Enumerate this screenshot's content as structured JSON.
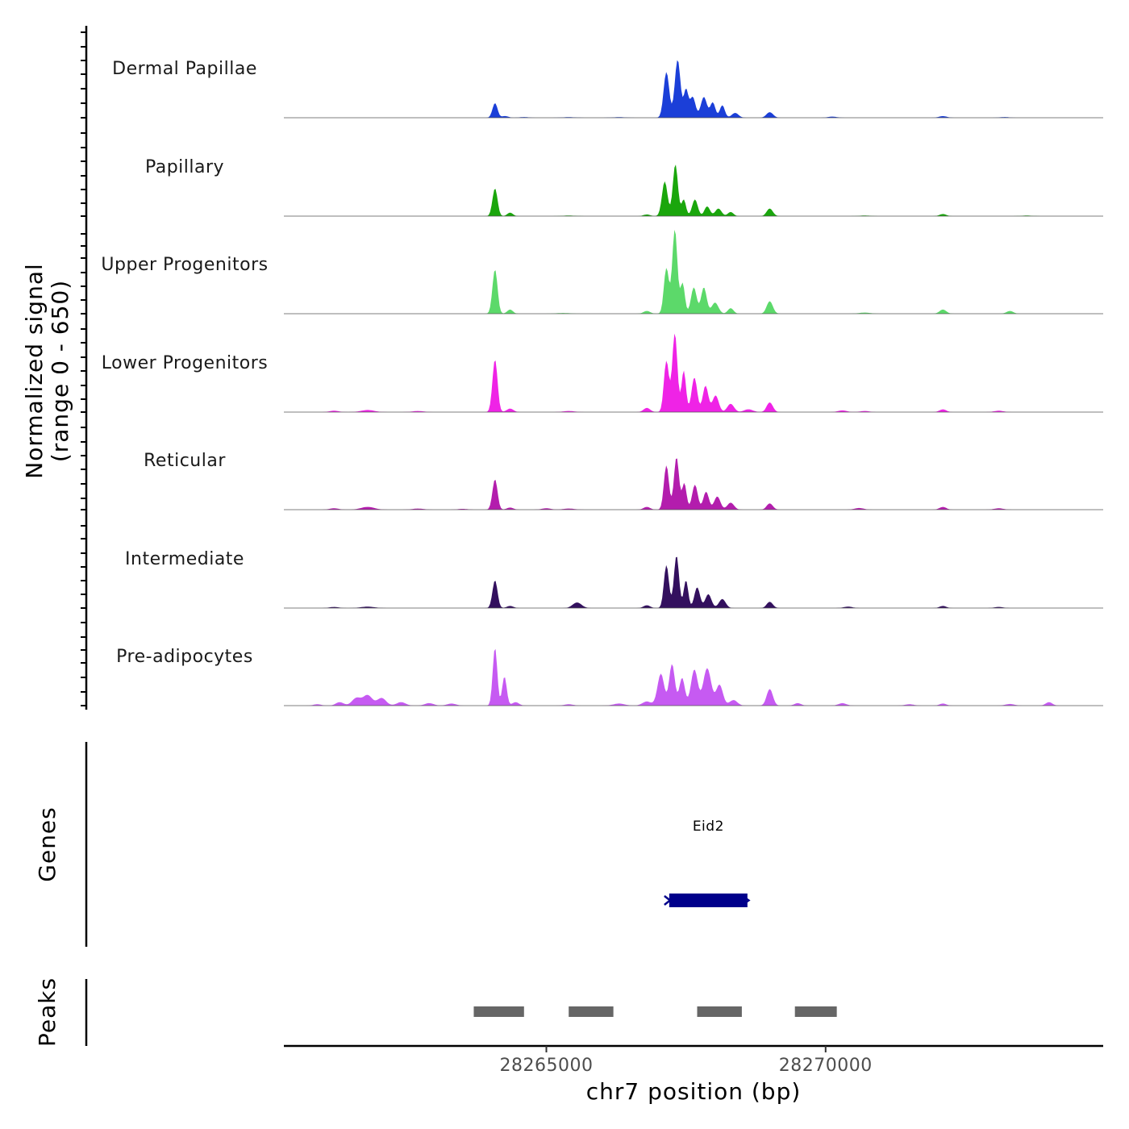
{
  "chart_data": {
    "type": "area",
    "title": "",
    "xlabel": "chr7 position (bp)",
    "ylabel": "Normalized signal",
    "ylabel_range": "(range 0 - 650)",
    "xlim": [
      28260300,
      28274970
    ],
    "ylim": [
      0,
      650
    ],
    "x_ticks": [
      28265000,
      28270000
    ],
    "x_tick_labels": [
      "28265000",
      "28270000"
    ],
    "series": [
      {
        "name": "Dermal Papillae",
        "color": "#1b3fd8",
        "peaks": [
          [
            28264080,
            105,
            45
          ],
          [
            28264260,
            12,
            60
          ],
          [
            28264600,
            5,
            80
          ],
          [
            28265400,
            4,
            120
          ],
          [
            28266300,
            4,
            120
          ],
          [
            28267150,
            330,
            50
          ],
          [
            28267350,
            420,
            50
          ],
          [
            28267500,
            200,
            40
          ],
          [
            28267620,
            150,
            50
          ],
          [
            28267820,
            150,
            55
          ],
          [
            28267980,
            110,
            45
          ],
          [
            28268150,
            90,
            45
          ],
          [
            28268380,
            35,
            60
          ],
          [
            28269000,
            40,
            60
          ],
          [
            28270120,
            8,
            80
          ],
          [
            28272100,
            12,
            70
          ],
          [
            28273200,
            5,
            80
          ]
        ]
      },
      {
        "name": "Papillary",
        "color": "#1aa60c",
        "peaks": [
          [
            28264080,
            200,
            45
          ],
          [
            28264350,
            25,
            50
          ],
          [
            28265400,
            4,
            120
          ],
          [
            28266800,
            12,
            60
          ],
          [
            28267120,
            250,
            50
          ],
          [
            28267310,
            375,
            45
          ],
          [
            28267460,
            120,
            40
          ],
          [
            28267660,
            120,
            50
          ],
          [
            28267880,
            70,
            50
          ],
          [
            28268080,
            55,
            55
          ],
          [
            28268300,
            30,
            50
          ],
          [
            28269000,
            55,
            55
          ],
          [
            28270700,
            4,
            100
          ],
          [
            28272100,
            15,
            60
          ],
          [
            28273600,
            4,
            100
          ]
        ]
      },
      {
        "name": "Upper Progenitors",
        "color": "#5cd96a",
        "peaks": [
          [
            28264080,
            320,
            45
          ],
          [
            28264350,
            30,
            50
          ],
          [
            28265300,
            5,
            120
          ],
          [
            28266800,
            20,
            60
          ],
          [
            28267150,
            330,
            45
          ],
          [
            28267300,
            610,
            45
          ],
          [
            28267440,
            220,
            40
          ],
          [
            28267640,
            190,
            50
          ],
          [
            28267820,
            190,
            50
          ],
          [
            28268020,
            80,
            60
          ],
          [
            28268300,
            40,
            50
          ],
          [
            28269000,
            90,
            55
          ],
          [
            28270700,
            8,
            100
          ],
          [
            28272100,
            30,
            60
          ],
          [
            28273300,
            20,
            60
          ]
        ]
      },
      {
        "name": "Lower Progenitors",
        "color": "#ef23e6",
        "peaks": [
          [
            28261200,
            10,
            80
          ],
          [
            28261800,
            15,
            120
          ],
          [
            28262700,
            8,
            100
          ],
          [
            28264080,
            380,
            45
          ],
          [
            28264350,
            25,
            60
          ],
          [
            28265400,
            8,
            100
          ],
          [
            28266800,
            30,
            60
          ],
          [
            28267150,
            370,
            45
          ],
          [
            28267300,
            570,
            45
          ],
          [
            28267460,
            300,
            40
          ],
          [
            28267650,
            250,
            50
          ],
          [
            28267850,
            190,
            50
          ],
          [
            28268030,
            120,
            55
          ],
          [
            28268300,
            60,
            60
          ],
          [
            28268620,
            20,
            80
          ],
          [
            28269000,
            70,
            55
          ],
          [
            28270300,
            12,
            80
          ],
          [
            28270700,
            8,
            80
          ],
          [
            28272100,
            20,
            60
          ],
          [
            28273100,
            10,
            80
          ]
        ]
      },
      {
        "name": "Reticular",
        "color": "#b31dad",
        "peaks": [
          [
            28261200,
            10,
            80
          ],
          [
            28261800,
            20,
            120
          ],
          [
            28262700,
            8,
            100
          ],
          [
            28263500,
            6,
            80
          ],
          [
            28264080,
            220,
            45
          ],
          [
            28264350,
            15,
            60
          ],
          [
            28265000,
            10,
            80
          ],
          [
            28265400,
            8,
            100
          ],
          [
            28266800,
            20,
            60
          ],
          [
            28267150,
            320,
            45
          ],
          [
            28267330,
            380,
            45
          ],
          [
            28267470,
            190,
            40
          ],
          [
            28267660,
            180,
            50
          ],
          [
            28267860,
            130,
            50
          ],
          [
            28268060,
            95,
            55
          ],
          [
            28268300,
            50,
            60
          ],
          [
            28269000,
            45,
            55
          ],
          [
            28270600,
            12,
            80
          ],
          [
            28272100,
            20,
            60
          ],
          [
            28273100,
            10,
            80
          ]
        ]
      },
      {
        "name": "Intermediate",
        "color": "#33105e",
        "peaks": [
          [
            28261200,
            8,
            80
          ],
          [
            28261800,
            10,
            120
          ],
          [
            28264080,
            200,
            45
          ],
          [
            28264350,
            15,
            60
          ],
          [
            28265550,
            40,
            80
          ],
          [
            28266800,
            20,
            60
          ],
          [
            28267150,
            310,
            45
          ],
          [
            28267330,
            380,
            45
          ],
          [
            28267500,
            200,
            40
          ],
          [
            28267700,
            150,
            50
          ],
          [
            28267900,
            100,
            55
          ],
          [
            28268150,
            65,
            60
          ],
          [
            28269000,
            45,
            55
          ],
          [
            28270400,
            10,
            80
          ],
          [
            28272100,
            15,
            60
          ],
          [
            28273100,
            8,
            80
          ]
        ]
      },
      {
        "name": "Pre-adipocytes",
        "color": "#c65af2",
        "peaks": [
          [
            28260900,
            10,
            70
          ],
          [
            28261300,
            25,
            70
          ],
          [
            28261600,
            55,
            80
          ],
          [
            28261800,
            75,
            80
          ],
          [
            28262050,
            55,
            80
          ],
          [
            28262400,
            25,
            80
          ],
          [
            28262900,
            18,
            80
          ],
          [
            28263300,
            15,
            80
          ],
          [
            28264080,
            420,
            40
          ],
          [
            28264250,
            210,
            40
          ],
          [
            28264450,
            25,
            60
          ],
          [
            28265400,
            10,
            80
          ],
          [
            28266300,
            15,
            100
          ],
          [
            28266800,
            30,
            80
          ],
          [
            28267050,
            230,
            60
          ],
          [
            28267250,
            300,
            50
          ],
          [
            28267430,
            200,
            50
          ],
          [
            28267650,
            260,
            60
          ],
          [
            28267880,
            270,
            70
          ],
          [
            28268100,
            150,
            60
          ],
          [
            28268350,
            40,
            70
          ],
          [
            28269000,
            120,
            55
          ],
          [
            28269500,
            18,
            60
          ],
          [
            28270300,
            18,
            70
          ],
          [
            28271500,
            10,
            80
          ],
          [
            28272100,
            15,
            60
          ],
          [
            28273300,
            12,
            80
          ],
          [
            28274000,
            25,
            60
          ]
        ]
      }
    ],
    "genes": [
      {
        "name": "Eid2",
        "start": 28267200,
        "end": 28268600,
        "strand": "-",
        "color": "#00008b"
      }
    ],
    "peaks_track": {
      "label": "Peaks",
      "color": "#666666",
      "regions": [
        [
          28263700,
          28264600
        ],
        [
          28265400,
          28266200
        ],
        [
          28267700,
          28268500
        ],
        [
          28269450,
          28270200
        ]
      ]
    },
    "genes_track_label": "Genes"
  }
}
